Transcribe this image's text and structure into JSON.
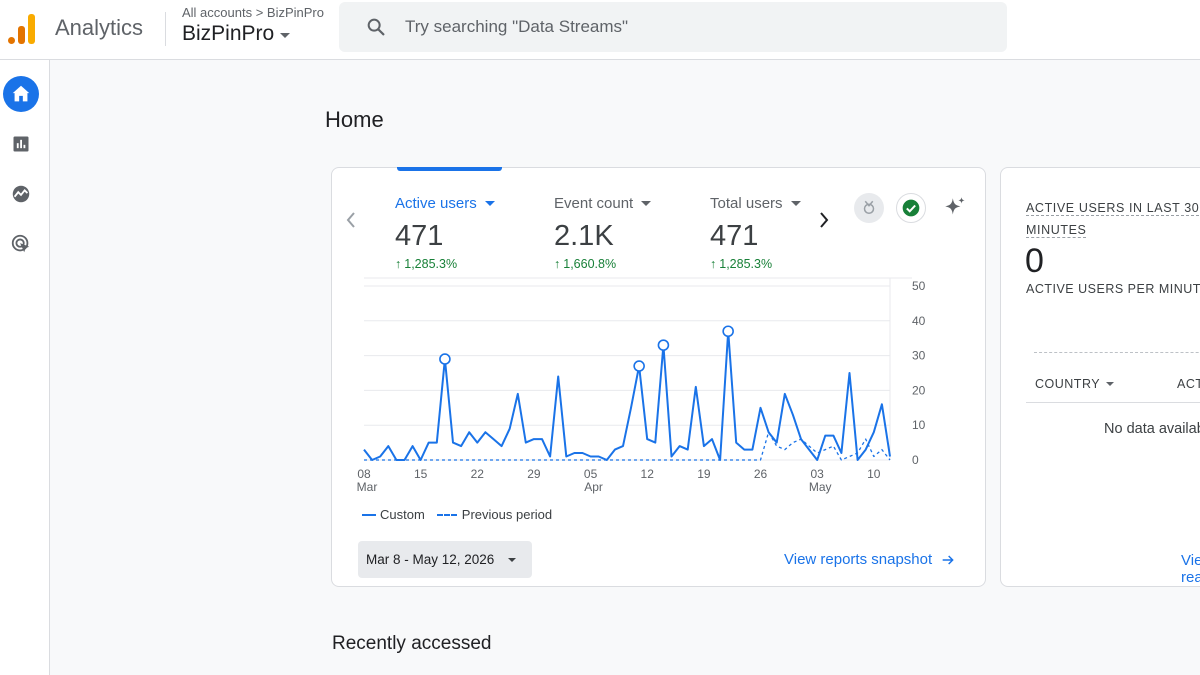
{
  "header": {
    "app_name": "Analytics",
    "breadcrumb": "All accounts > BizPinPro",
    "account_name": "BizPinPro",
    "search_placeholder": "Try searching \"Data Streams\""
  },
  "rail": {
    "items": [
      {
        "icon": "home-icon",
        "active": true
      },
      {
        "icon": "reports-icon",
        "active": false
      },
      {
        "icon": "explore-icon",
        "active": false
      },
      {
        "icon": "advertising-icon",
        "active": false
      }
    ]
  },
  "page": {
    "title": "Home",
    "recent_title": "Recently accessed"
  },
  "metrics": [
    {
      "label": "Active users",
      "value": "471",
      "change": "1,285.3%",
      "active": true
    },
    {
      "label": "Event count",
      "value": "2.1K",
      "change": "1,660.8%",
      "active": false
    },
    {
      "label": "Total users",
      "value": "471",
      "change": "1,285.3%",
      "active": false
    }
  ],
  "chart_data": {
    "type": "line",
    "title": "",
    "xlabel": "",
    "ylabel": "",
    "ylim": [
      0,
      50
    ],
    "y_ticks": [
      "0",
      "10",
      "20",
      "30",
      "40",
      "50"
    ],
    "x_ticks": [
      {
        "label": "08",
        "sub": "Mar",
        "day_index": 0
      },
      {
        "label": "15",
        "sub": "",
        "day_index": 7
      },
      {
        "label": "22",
        "sub": "",
        "day_index": 14
      },
      {
        "label": "29",
        "sub": "",
        "day_index": 21
      },
      {
        "label": "05",
        "sub": "Apr",
        "day_index": 28
      },
      {
        "label": "12",
        "sub": "",
        "day_index": 35
      },
      {
        "label": "19",
        "sub": "",
        "day_index": 42
      },
      {
        "label": "26",
        "sub": "",
        "day_index": 49
      },
      {
        "label": "03",
        "sub": "May",
        "day_index": 56
      },
      {
        "label": "10",
        "sub": "",
        "day_index": 63
      }
    ],
    "grid": true,
    "series": [
      {
        "name": "Custom",
        "style": "solid",
        "color": "#1a73e8",
        "values": [
          3,
          0,
          1,
          4,
          0,
          0,
          4,
          0,
          5,
          5,
          29,
          5,
          4,
          8,
          5,
          8,
          6,
          4,
          9,
          19,
          5,
          6,
          6,
          1,
          24,
          1,
          2,
          2,
          1,
          1,
          0,
          3,
          4,
          15,
          27,
          6,
          5,
          33,
          1,
          4,
          3,
          21,
          4,
          6,
          0,
          37,
          5,
          3,
          3,
          15,
          8,
          5,
          19,
          13,
          6,
          3,
          0,
          7,
          7,
          2,
          25,
          0,
          3,
          8,
          16,
          1
        ],
        "markers": [
          10,
          34,
          37,
          45
        ]
      },
      {
        "name": "Previous period",
        "style": "dashed",
        "color": "#1a73e8",
        "values": [
          0,
          0,
          0,
          0,
          0,
          0,
          0,
          0,
          0,
          0,
          0,
          0,
          0,
          0,
          0,
          0,
          0,
          0,
          0,
          0,
          0,
          0,
          0,
          0,
          0,
          0,
          0,
          0,
          0,
          0,
          0,
          0,
          0,
          0,
          0,
          0,
          0,
          0,
          0,
          0,
          0,
          0,
          0,
          0,
          0,
          0,
          0,
          0,
          0,
          0,
          8,
          4,
          3,
          5,
          6,
          4,
          2,
          3,
          4,
          0,
          1,
          2,
          6,
          1,
          3,
          0
        ]
      }
    ]
  },
  "legend": {
    "custom": "Custom",
    "previous": "Previous period"
  },
  "date_range": "Mar 8 - May 12, 2026",
  "snapshot_link": "View reports snapshot",
  "realtime": {
    "title": "ACTIVE USERS IN LAST 30 MINUTES",
    "value": "0",
    "subtitle": "ACTIVE USERS PER MINUTE",
    "col_country": "COUNTRY",
    "col_active": "ACTIVE USERS",
    "no_data": "No data available",
    "link": "View realtime"
  }
}
